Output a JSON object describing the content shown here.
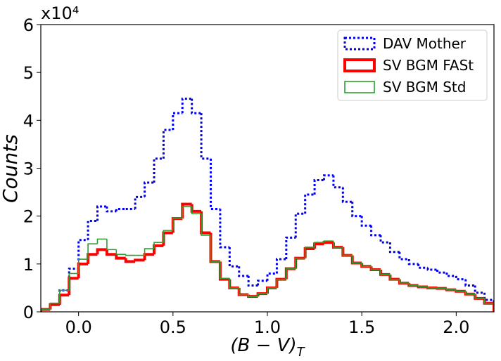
{
  "chart_data": {
    "type": "histogram",
    "xlabel": "(B − V)",
    "xlabel_sub": "T",
    "ylabel": "Counts",
    "y_offset_label": "x10⁴",
    "bins": [
      -0.2,
      -0.15,
      -0.1,
      -0.05,
      0.0,
      0.05,
      0.1,
      0.15,
      0.2,
      0.25,
      0.3,
      0.35,
      0.4,
      0.45,
      0.5,
      0.55,
      0.6,
      0.65,
      0.7,
      0.75,
      0.8,
      0.85,
      0.9,
      0.95,
      1.0,
      1.05,
      1.1,
      1.15,
      1.2,
      1.25,
      1.3,
      1.35,
      1.4,
      1.45,
      1.5,
      1.55,
      1.6,
      1.65,
      1.7,
      1.75,
      1.8,
      1.85,
      1.9,
      1.95,
      2.0,
      2.05,
      2.1,
      2.15,
      2.2
    ],
    "series": [
      {
        "name": "DAV Mother",
        "color": "#0000ee",
        "style": "dotted",
        "values": [
          0.05,
          0.15,
          0.45,
          0.9,
          1.5,
          1.9,
          2.2,
          2.1,
          2.15,
          2.15,
          2.4,
          2.7,
          3.2,
          3.8,
          4.15,
          4.45,
          4.15,
          3.2,
          2.15,
          1.35,
          0.95,
          0.75,
          0.55,
          0.65,
          0.8,
          1.1,
          1.55,
          2.05,
          2.45,
          2.75,
          2.85,
          2.6,
          2.3,
          2.0,
          1.8,
          1.6,
          1.45,
          1.25,
          1.1,
          1.0,
          0.92,
          0.88,
          0.82,
          0.75,
          0.68,
          0.55,
          0.4,
          0.25
        ]
      },
      {
        "name": "SV BGM FASt",
        "color": "#ff0000",
        "style": "thick",
        "values": [
          0.05,
          0.15,
          0.35,
          0.7,
          1.0,
          1.2,
          1.3,
          1.2,
          1.12,
          1.05,
          1.08,
          1.2,
          1.38,
          1.65,
          1.95,
          2.25,
          2.1,
          1.65,
          1.05,
          0.68,
          0.5,
          0.36,
          0.32,
          0.38,
          0.5,
          0.68,
          0.9,
          1.12,
          1.32,
          1.42,
          1.45,
          1.35,
          1.18,
          1.02,
          0.95,
          0.88,
          0.78,
          0.68,
          0.6,
          0.55,
          0.52,
          0.5,
          0.49,
          0.46,
          0.43,
          0.37,
          0.28,
          0.18
        ]
      },
      {
        "name": "SV BGM Std",
        "color": "#2ca02c",
        "style": "thin",
        "values": [
          0.05,
          0.18,
          0.45,
          0.8,
          1.1,
          1.42,
          1.52,
          1.3,
          1.2,
          1.18,
          1.18,
          1.32,
          1.45,
          1.7,
          1.95,
          2.2,
          2.05,
          1.6,
          1.05,
          0.7,
          0.5,
          0.36,
          0.32,
          0.38,
          0.5,
          0.68,
          0.9,
          1.12,
          1.35,
          1.45,
          1.48,
          1.35,
          1.18,
          1.02,
          0.95,
          0.88,
          0.78,
          0.68,
          0.6,
          0.55,
          0.52,
          0.5,
          0.49,
          0.46,
          0.43,
          0.37,
          0.28,
          0.18
        ]
      }
    ],
    "xlim": [
      -0.2,
      2.2
    ],
    "ylim": [
      0,
      6
    ],
    "xticks": [
      {
        "value": 0,
        "label": "0.0"
      },
      0.5,
      {
        "value": 1,
        "label": "1.0"
      },
      1.5,
      {
        "value": 2,
        "label": "2.0"
      }
    ],
    "yticks": [
      0,
      1,
      2,
      3,
      4,
      5,
      6
    ],
    "legend": "upper right"
  }
}
